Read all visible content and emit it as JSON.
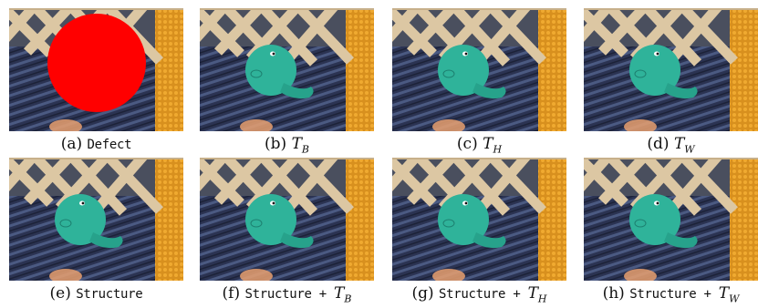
{
  "panels": [
    {
      "tag": "(a)",
      "text": "Defect",
      "math": "",
      "sub": "",
      "defect": true
    },
    {
      "tag": "(b)",
      "text": "",
      "math": "T",
      "sub": "B",
      "defect": false
    },
    {
      "tag": "(c)",
      "text": "",
      "math": "T",
      "sub": "H",
      "defect": false
    },
    {
      "tag": "(d)",
      "text": "",
      "math": "T",
      "sub": "W",
      "defect": false
    },
    {
      "tag": "(e)",
      "text": "Structure",
      "math": "",
      "sub": "",
      "defect": false
    },
    {
      "tag": "(f)",
      "text": "Structure + ",
      "math": "T",
      "sub": "B",
      "defect": false
    },
    {
      "tag": "(g)",
      "text": "Structure + ",
      "math": "T",
      "sub": "H",
      "defect": false
    },
    {
      "tag": "(h)",
      "text": "Structure + ",
      "math": "T",
      "sub": "W",
      "defect": false
    }
  ],
  "colors": {
    "toy": "#2fb39a",
    "defect": "#ff0000",
    "lattice": "#d9c4a0",
    "fabric": "#2b3352",
    "orange": "#d8901e"
  }
}
